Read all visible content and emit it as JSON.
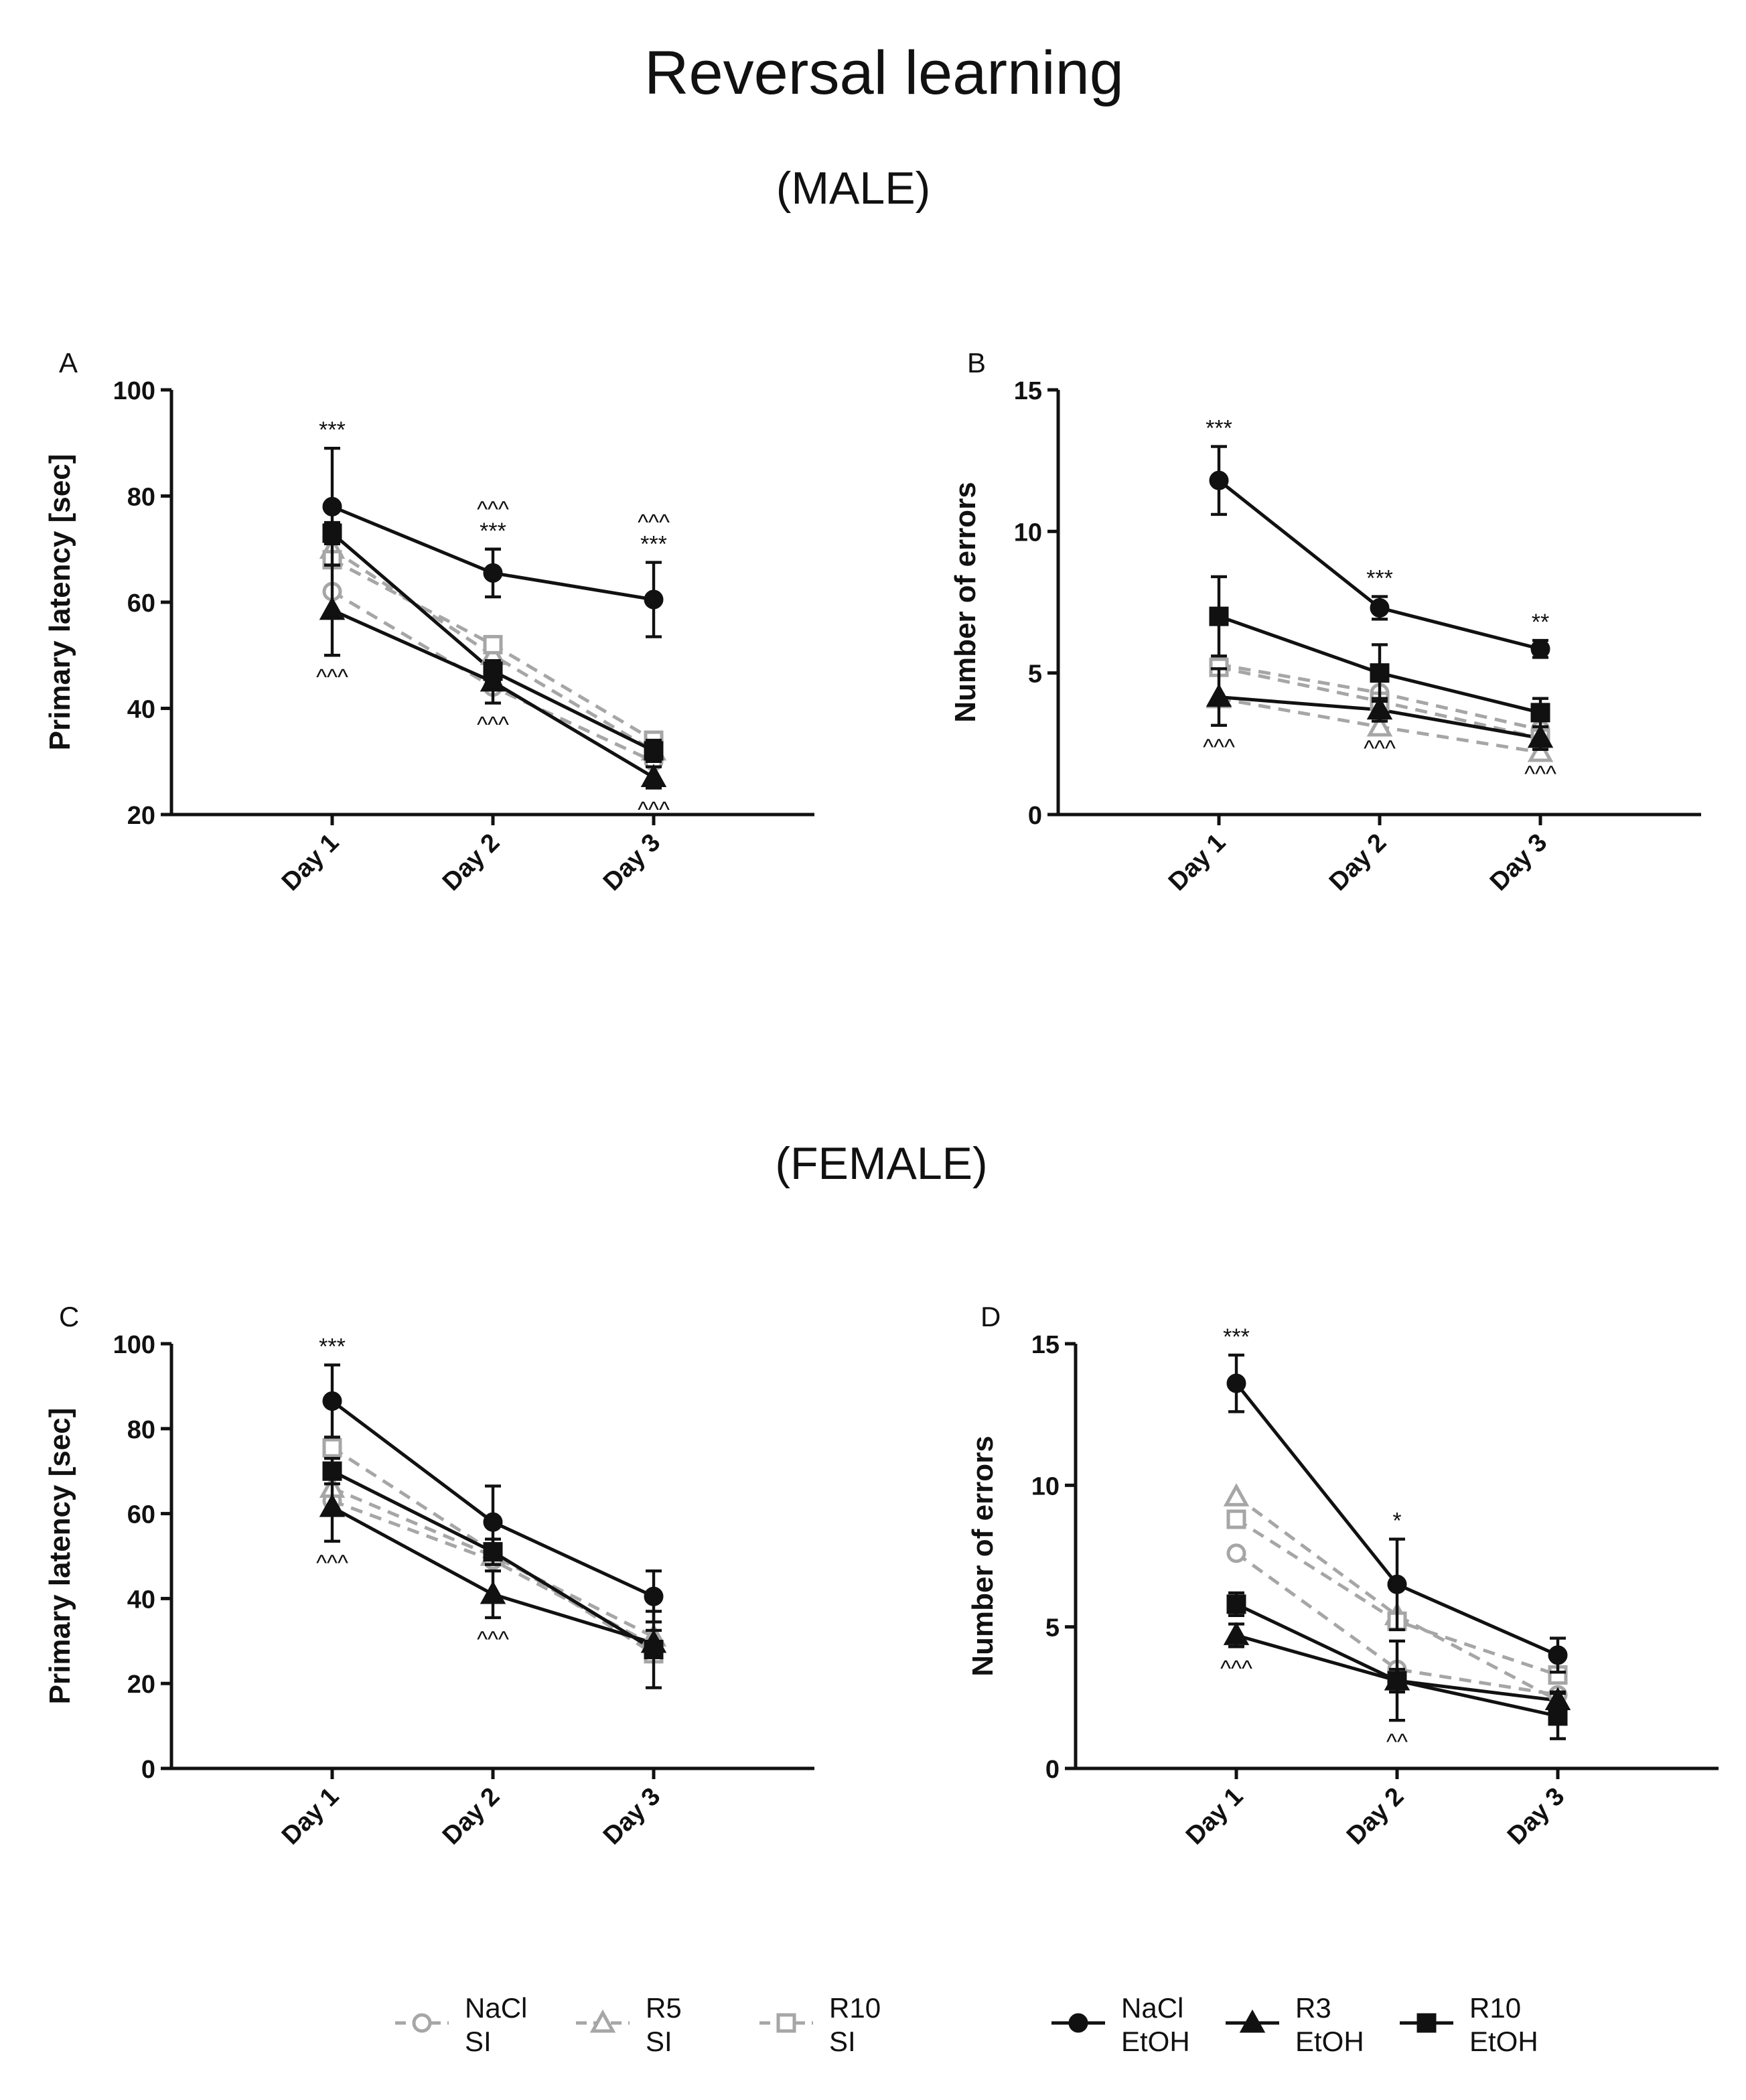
{
  "title": "Reversal learning",
  "male_heading": "(MALE)",
  "female_heading": "(FEMALE)",
  "chart_data": [
    {
      "type": "line",
      "panel": "A",
      "y_label": "Primary latency [sec]",
      "categories": [
        "Day 1",
        "Day 2",
        "Day 3"
      ],
      "ylim": [
        20,
        100
      ],
      "yticks": [
        20,
        40,
        60,
        80,
        100
      ],
      "series": [
        {
          "name": "NaCl SI",
          "color": "#a6a6a6",
          "marker": "circle",
          "filled": false,
          "dashed": true,
          "values": [
            62,
            44,
            30
          ]
        },
        {
          "name": "R5 SI",
          "color": "#a6a6a6",
          "marker": "triangle",
          "filled": false,
          "dashed": true,
          "values": [
            70,
            50,
            32
          ]
        },
        {
          "name": "R10 SI",
          "color": "#a6a6a6",
          "marker": "square",
          "filled": false,
          "dashed": true,
          "values": [
            68,
            52,
            34
          ]
        },
        {
          "name": "NaCl EtOH",
          "color": "#111111",
          "marker": "circle",
          "filled": true,
          "dashed": false,
          "values": [
            78,
            65.5,
            60.5
          ],
          "errors": [
            11,
            4.5,
            7
          ]
        },
        {
          "name": "R3 EtOH",
          "color": "#111111",
          "marker": "triangle",
          "filled": true,
          "dashed": false,
          "values": [
            58.5,
            45,
            27
          ],
          "errors": [
            8.5,
            4,
            2
          ]
        },
        {
          "name": "R10 EtOH",
          "color": "#111111",
          "marker": "square",
          "filled": true,
          "dashed": false,
          "values": [
            73,
            47,
            32
          ],
          "errors": [
            2,
            2,
            2
          ]
        }
      ],
      "annotations": {
        "above": [
          [
            "***"
          ],
          [
            "***",
            "^^^"
          ],
          [
            "***",
            "^^^"
          ]
        ],
        "below": [
          [
            "^^^"
          ],
          [
            "^^^"
          ],
          [
            "^^^"
          ]
        ]
      }
    },
    {
      "type": "line",
      "panel": "B",
      "y_label": "Number of errors",
      "categories": [
        "Day 1",
        "Day 2",
        "Day 3"
      ],
      "ylim": [
        0,
        15
      ],
      "yticks": [
        0,
        5,
        10,
        15
      ],
      "series": [
        {
          "color": "#a6a6a6",
          "marker": "circle",
          "filled": false,
          "dashed": true,
          "values": [
            5.3,
            4.3,
            3.0
          ]
        },
        {
          "color": "#a6a6a6",
          "marker": "triangle",
          "filled": false,
          "dashed": true,
          "values": [
            4.1,
            3.1,
            2.2
          ]
        },
        {
          "color": "#a6a6a6",
          "marker": "square",
          "filled": false,
          "dashed": true,
          "values": [
            5.2,
            4.0,
            2.7
          ]
        },
        {
          "color": "#111111",
          "marker": "circle",
          "filled": true,
          "dashed": false,
          "values": [
            11.8,
            7.3,
            5.85
          ],
          "errors": [
            1.2,
            0.4,
            0.3
          ]
        },
        {
          "color": "#111111",
          "marker": "triangle",
          "filled": true,
          "dashed": false,
          "values": [
            4.15,
            3.7,
            2.7
          ],
          "errors": [
            1.0,
            0.4,
            0.4
          ]
        },
        {
          "color": "#111111",
          "marker": "square",
          "filled": true,
          "dashed": false,
          "values": [
            7.0,
            5.0,
            3.6
          ],
          "errors": [
            1.4,
            1.0,
            0.5
          ]
        }
      ],
      "annotations": {
        "above": [
          [
            "***"
          ],
          [
            "***"
          ],
          [
            "**"
          ]
        ],
        "below": [
          [
            "^^^"
          ],
          [
            "^^^"
          ],
          [
            "^^^"
          ]
        ]
      }
    },
    {
      "type": "line",
      "panel": "C",
      "y_label": "Primary latency [sec]",
      "categories": [
        "Day 1",
        "Day 2",
        "Day 3"
      ],
      "ylim": [
        0,
        100
      ],
      "yticks": [
        0,
        20,
        40,
        60,
        80,
        100
      ],
      "series": [
        {
          "color": "#a6a6a6",
          "marker": "circle",
          "filled": false,
          "dashed": true,
          "values": [
            63,
            49,
            29
          ]
        },
        {
          "color": "#a6a6a6",
          "marker": "triangle",
          "filled": false,
          "dashed": true,
          "values": [
            66,
            50,
            31
          ]
        },
        {
          "color": "#a6a6a6",
          "marker": "square",
          "filled": false,
          "dashed": true,
          "values": [
            75.5,
            51,
            27
          ]
        },
        {
          "color": "#111111",
          "marker": "circle",
          "filled": true,
          "dashed": false,
          "values": [
            86.5,
            58,
            40.5
          ],
          "errors": [
            8.5,
            8.5,
            6
          ]
        },
        {
          "color": "#111111",
          "marker": "triangle",
          "filled": true,
          "dashed": false,
          "values": [
            61.5,
            41,
            29.5
          ],
          "errors": [
            8,
            5.5,
            3
          ]
        },
        {
          "color": "#111111",
          "marker": "square",
          "filled": true,
          "dashed": false,
          "values": [
            70,
            51,
            28
          ],
          "errors": [
            3,
            3,
            9
          ]
        }
      ],
      "annotations": {
        "above": [
          [
            "***"
          ],
          [],
          []
        ],
        "below": [
          [
            "^^^"
          ],
          [
            "^^^"
          ],
          []
        ]
      }
    },
    {
      "type": "line",
      "panel": "D",
      "y_label": "Number of errors",
      "categories": [
        "Day 1",
        "Day 2",
        "Day 3"
      ],
      "ylim": [
        0,
        15
      ],
      "yticks": [
        0,
        5,
        10,
        15
      ],
      "series": [
        {
          "color": "#a6a6a6",
          "marker": "circle",
          "filled": false,
          "dashed": true,
          "values": [
            7.6,
            3.5,
            2.6
          ]
        },
        {
          "color": "#a6a6a6",
          "marker": "triangle",
          "filled": false,
          "dashed": true,
          "values": [
            9.6,
            5.4,
            2.4
          ]
        },
        {
          "color": "#a6a6a6",
          "marker": "square",
          "filled": false,
          "dashed": true,
          "values": [
            8.8,
            5.2,
            3.3
          ]
        },
        {
          "color": "#111111",
          "marker": "circle",
          "filled": true,
          "dashed": false,
          "values": [
            13.6,
            6.5,
            4.0
          ],
          "errors": [
            1.0,
            1.6,
            0.6
          ]
        },
        {
          "color": "#111111",
          "marker": "triangle",
          "filled": true,
          "dashed": false,
          "values": [
            4.7,
            3.1,
            2.4
          ],
          "errors": [
            0.4,
            0.4,
            0.3
          ]
        },
        {
          "color": "#111111",
          "marker": "square",
          "filled": true,
          "dashed": false,
          "values": [
            5.8,
            3.1,
            1.85
          ],
          "errors": [
            0.4,
            1.4,
            0.8
          ]
        }
      ],
      "annotations": {
        "above": [
          [
            "***"
          ],
          [
            "*"
          ],
          []
        ],
        "below": [
          [
            "^^^"
          ],
          [
            "^^"
          ],
          []
        ]
      }
    }
  ]
}
